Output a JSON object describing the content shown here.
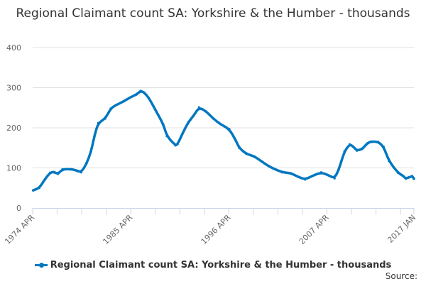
{
  "chart_data": {
    "type": "line",
    "title": "Regional Claimant count SA: Yorkshire & the Humber - thousands",
    "xlabel": "",
    "ylabel": "",
    "xlim": [
      1974.25,
      2017.0
    ],
    "ylim": [
      0,
      400
    ],
    "y_ticks": [
      0,
      100,
      200,
      300,
      400
    ],
    "x_tick_labels": [
      {
        "label": "1974 APR",
        "x": 1974.25
      },
      {
        "label": "1985 APR",
        "x": 1985.25
      },
      {
        "label": "1996 APR",
        "x": 1996.25
      },
      {
        "label": "2007 APR",
        "x": 2007.25
      },
      {
        "label": "2017 JAN",
        "x": 2017.0
      }
    ],
    "grid": true,
    "legend": "bottom",
    "color": "#0077c0",
    "series": [
      {
        "name": "Regional Claimant count SA: Yorkshire & the Humber - thousands",
        "x": [
          1974.3,
          1975.0,
          1975.6,
          1976.2,
          1976.6,
          1977.1,
          1977.6,
          1978.6,
          1979.1,
          1979.7,
          1980.3,
          1980.8,
          1981.2,
          1981.6,
          1982.4,
          1983.0,
          1983.6,
          1984.4,
          1985.2,
          1985.9,
          1986.35,
          1986.75,
          1987.3,
          1988.1,
          1988.9,
          1989.3,
          1990.25,
          1990.5,
          1991.1,
          1991.7,
          1992.3,
          1992.9,
          1993.7,
          1994.5,
          1995.3,
          1996.3,
          1997.0,
          1997.4,
          1998.2,
          1999.1,
          2000.0,
          2000.8,
          2002.2,
          2003.2,
          2004.0,
          2004.8,
          2005.6,
          2006.6,
          2007.4,
          2008.1,
          2008.6,
          2009.2,
          2009.8,
          2010.2,
          2010.6,
          2011.2,
          2011.75,
          2012.2,
          2013.0,
          2013.6,
          2014.2,
          2015.2,
          2015.8,
          2016.1,
          2016.8,
          2017.0
        ],
        "values": [
          44,
          50,
          71,
          88,
          90,
          85,
          97,
          97,
          94,
          89,
          111,
          141,
          182,
          212,
          223,
          248,
          257,
          265,
          276,
          283,
          292,
          288,
          274,
          241,
          209,
          179,
          156,
          159,
          188,
          214,
          230,
          251,
          241,
          223,
          209,
          197,
          170,
          150,
          135,
          129,
          115,
          103,
          89,
          87,
          78,
          71,
          80,
          89,
          82,
          74,
          97,
          141,
          159,
          153,
          143,
          147,
          161,
          166,
          165,
          153,
          117,
          88,
          80,
          73,
          80,
          73
        ]
      }
    ]
  },
  "legend_label": "Regional Claimant count SA: Yorkshire & the Humber - thousands",
  "source_label": "Source:"
}
